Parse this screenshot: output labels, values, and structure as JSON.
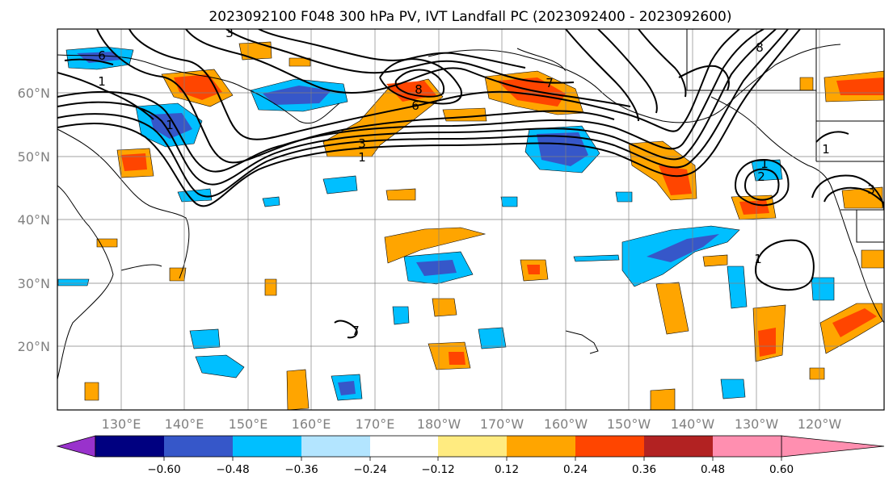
{
  "title": "2023092100 F048 300 hPa PV, IVT Landfall PC (2023092400 - 2023092600)",
  "lat_labels": [
    "60°N",
    "50°N",
    "40°N",
    "30°N",
    "20°N"
  ],
  "lon_labels": [
    "130°E",
    "140°E",
    "150°E",
    "160°E",
    "170°E",
    "180°W",
    "170°W",
    "160°W",
    "150°W",
    "140°W",
    "130°W",
    "120°W"
  ],
  "colorbar": {
    "colors": [
      "#9932cc",
      "#000080",
      "#3657c9",
      "#00bfff",
      "#b3e5ff",
      "#ffffff",
      "#ffeb80",
      "#ffa500",
      "#ff4500",
      "#b22222",
      "#ff8fb0"
    ],
    "ticks": [
      "−0.60",
      "−0.48",
      "−0.36",
      "−0.24",
      "−0.12",
      "0.12",
      "0.24",
      "0.36",
      "0.48",
      "0.60"
    ]
  },
  "contour_labels": [
    "6",
    "1",
    "8",
    "6",
    "3",
    "1",
    "7",
    "8",
    "3",
    "1",
    "1",
    "2",
    "1",
    "3",
    "7",
    "1"
  ]
}
